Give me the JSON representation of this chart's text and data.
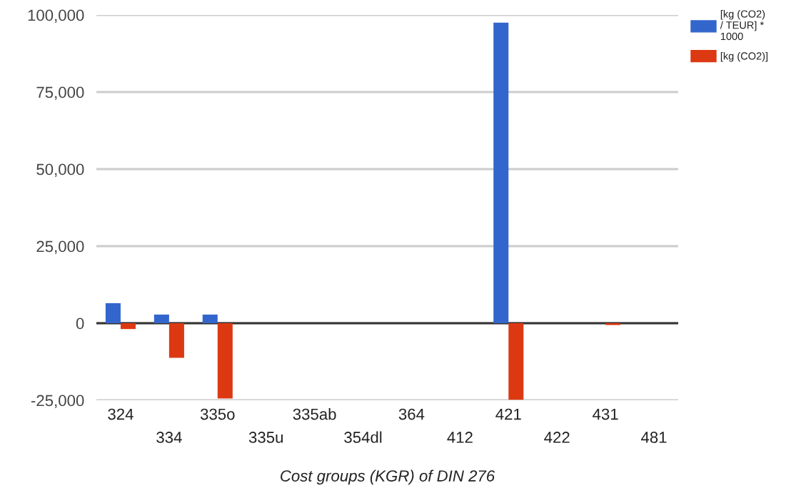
{
  "chart_data": {
    "type": "bar",
    "xlabel": "Cost groups (KGR) of DIN 276",
    "categories": [
      "324",
      "334",
      "335o",
      "335u",
      "335ab",
      "354dl",
      "364",
      "412",
      "421",
      "422",
      "431",
      "481"
    ],
    "series": [
      {
        "name": "[kg (CO2) / TEUR] * 1000",
        "color": "#3366cc",
        "values": [
          6500,
          2800,
          2800,
          0,
          0,
          0,
          0,
          0,
          97500,
          0,
          0,
          0
        ]
      },
      {
        "name": "[kg (CO2)]",
        "color": "#dc3912",
        "values": [
          -1900,
          -11200,
          -24400,
          0,
          0,
          0,
          0,
          0,
          -24800,
          0,
          -600,
          0
        ]
      }
    ],
    "ylim": [
      -25000,
      100000
    ],
    "yticks": [
      {
        "value": -25000,
        "label": "-25,000"
      },
      {
        "value": 0,
        "label": "0"
      },
      {
        "value": 25000,
        "label": "25,000"
      },
      {
        "value": 50000,
        "label": "50,000"
      },
      {
        "value": 75000,
        "label": "75,000"
      },
      {
        "value": 100000,
        "label": "100,000"
      }
    ],
    "grid": "y",
    "legend": "top right"
  }
}
